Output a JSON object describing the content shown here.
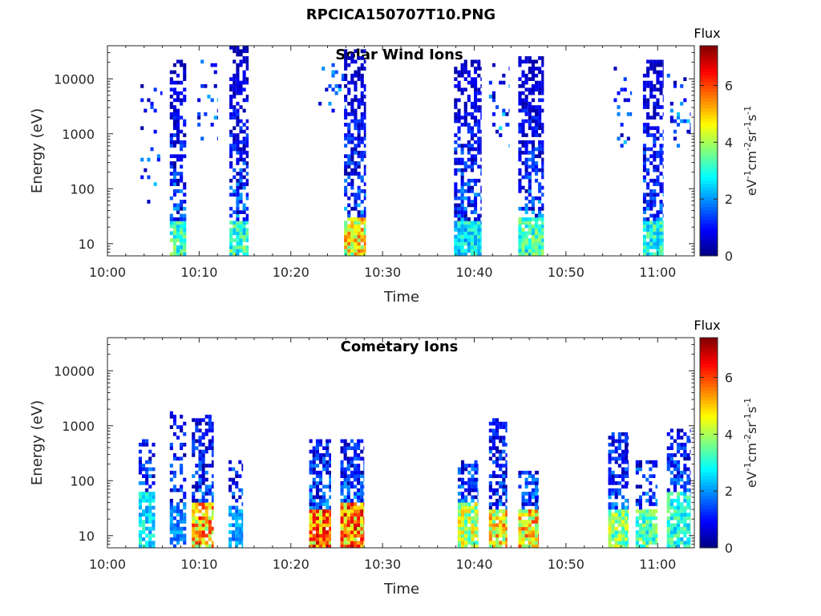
{
  "figure_title": "RPCICA150707T10.PNG",
  "colorbar": {
    "title": "Flux",
    "label": "eV-1cm-2sr-1s-1",
    "label_parts": [
      "eV",
      "-1",
      "cm",
      "-2",
      "sr",
      "-1",
      "s",
      "-1"
    ],
    "range": [
      0,
      7.4
    ],
    "ticks": [
      "0",
      "2",
      "4",
      "6"
    ],
    "tick_values": [
      0,
      2,
      4,
      6
    ],
    "colormap": "jet"
  },
  "chart_data": [
    {
      "type": "heatmap",
      "title": "Solar Wind Ions",
      "xlabel": "Time",
      "ylabel": "Energy (eV)",
      "yscale": "log",
      "ylim": [
        6,
        40000
      ],
      "xlim_minutes": [
        0,
        64
      ],
      "xticks": [
        "10:00",
        "10:10",
        "10:20",
        "10:30",
        "10:40",
        "10:50",
        "11:00"
      ],
      "xtick_minutes": [
        0,
        10,
        20,
        30,
        40,
        50,
        60
      ],
      "yticks": [
        "10",
        "100",
        "1000",
        "10000"
      ],
      "ytick_values": [
        10,
        100,
        1000,
        10000
      ],
      "bursts": [
        {
          "t": [
            3.6,
            6.0
          ],
          "e": [
            50,
            8000
          ],
          "peak": 1.0,
          "low": 0,
          "density": 0.12
        },
        {
          "t": [
            6.8,
            8.6
          ],
          "e": [
            6,
            22000
          ],
          "peak": 4.0,
          "low": 28,
          "density": 0.55
        },
        {
          "t": [
            9.8,
            12.0
          ],
          "e": [
            800,
            22000
          ],
          "peak": 1.0,
          "low": 0,
          "density": 0.12
        },
        {
          "t": [
            13.3,
            15.4
          ],
          "e": [
            6,
            38000
          ],
          "peak": 4.0,
          "low": 28,
          "density": 0.55
        },
        {
          "t": [
            23.0,
            26.0
          ],
          "e": [
            2000,
            20000
          ],
          "peak": 1.0,
          "low": 0,
          "density": 0.12
        },
        {
          "t": [
            25.8,
            28.2
          ],
          "e": [
            6,
            36000
          ],
          "peak": 5.8,
          "low": 30,
          "density": 0.6
        },
        {
          "t": [
            37.8,
            40.8
          ],
          "e": [
            6,
            22000
          ],
          "peak": 3.4,
          "low": 25,
          "density": 0.6
        },
        {
          "t": [
            41.6,
            43.8
          ],
          "e": [
            600,
            20000
          ],
          "peak": 1.0,
          "low": 0,
          "density": 0.12
        },
        {
          "t": [
            44.8,
            47.6
          ],
          "e": [
            6,
            24000
          ],
          "peak": 4.0,
          "low": 30,
          "density": 0.6
        },
        {
          "t": [
            55.2,
            57.2
          ],
          "e": [
            600,
            16000
          ],
          "peak": 1.0,
          "low": 0,
          "density": 0.12
        },
        {
          "t": [
            58.4,
            60.6
          ],
          "e": [
            6,
            22000
          ],
          "peak": 3.8,
          "low": 28,
          "density": 0.55
        },
        {
          "t": [
            61.0,
            63.6
          ],
          "e": [
            500,
            14000
          ],
          "peak": 1.0,
          "low": 0,
          "density": 0.12
        }
      ]
    },
    {
      "type": "heatmap",
      "title": "Cometary Ions",
      "xlabel": "Time",
      "ylabel": "Energy (eV)",
      "yscale": "log",
      "ylim": [
        6,
        40000
      ],
      "xlim_minutes": [
        0,
        64
      ],
      "xticks": [
        "10:00",
        "10:10",
        "10:20",
        "10:30",
        "10:40",
        "10:50",
        "11:00"
      ],
      "xtick_minutes": [
        0,
        10,
        20,
        30,
        40,
        50,
        60
      ],
      "yticks": [
        "10",
        "100",
        "1000",
        "10000"
      ],
      "ytick_values": [
        10,
        100,
        1000,
        10000
      ],
      "bursts": [
        {
          "t": [
            3.4,
            5.2
          ],
          "e": [
            6,
            600
          ],
          "peak": 3.4,
          "low": 60,
          "density": 0.4
        },
        {
          "t": [
            6.8,
            8.6
          ],
          "e": [
            6,
            1900
          ],
          "peak": 2.4,
          "low": 40,
          "density": 0.3
        },
        {
          "t": [
            9.2,
            11.6
          ],
          "e": [
            6,
            1500
          ],
          "peak": 6.4,
          "low": 40,
          "density": 0.55
        },
        {
          "t": [
            13.2,
            14.8
          ],
          "e": [
            6,
            250
          ],
          "peak": 2.6,
          "low": 30,
          "density": 0.4
        },
        {
          "t": [
            22.0,
            24.4
          ],
          "e": [
            6,
            600
          ],
          "peak": 7.0,
          "low": 30,
          "density": 0.7
        },
        {
          "t": [
            25.4,
            28.0
          ],
          "e": [
            6,
            600
          ],
          "peak": 7.0,
          "low": 40,
          "density": 0.7
        },
        {
          "t": [
            38.2,
            40.4
          ],
          "e": [
            6,
            250
          ],
          "peak": 5.2,
          "low": 40,
          "density": 0.6
        },
        {
          "t": [
            41.6,
            43.6
          ],
          "e": [
            6,
            1300
          ],
          "peak": 6.0,
          "low": 30,
          "density": 0.6
        },
        {
          "t": [
            44.8,
            47.0
          ],
          "e": [
            6,
            150
          ],
          "peak": 6.2,
          "low": 30,
          "density": 0.6
        },
        {
          "t": [
            54.6,
            56.8
          ],
          "e": [
            6,
            800
          ],
          "peak": 4.8,
          "low": 30,
          "density": 0.55
        },
        {
          "t": [
            57.6,
            60.0
          ],
          "e": [
            6,
            250
          ],
          "peak": 4.2,
          "low": 30,
          "density": 0.5
        },
        {
          "t": [
            61.0,
            63.6
          ],
          "e": [
            6,
            900
          ],
          "peak": 3.8,
          "low": 60,
          "density": 0.5
        }
      ]
    }
  ]
}
